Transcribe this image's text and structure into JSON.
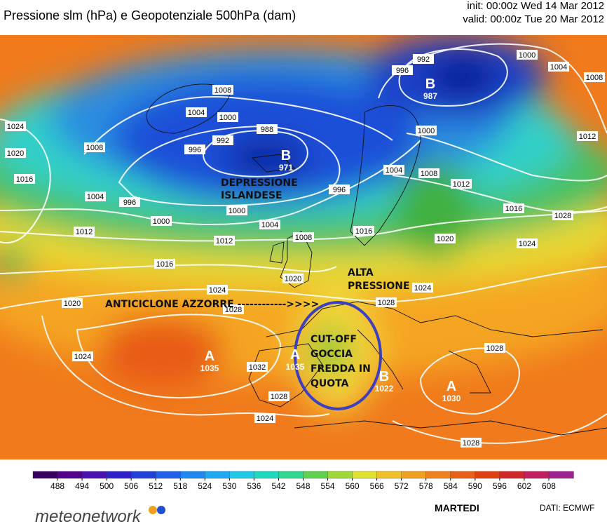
{
  "header": {
    "title": "Pressione slm (hPa) e Geopotenziale 500hPa (dam)",
    "init": "init: 00:00z Wed 14 Mar 2012",
    "valid": "valid: 00:00z Tue 20 Mar 2012"
  },
  "annotations": {
    "depression": [
      "DEPRESSIONE",
      "ISLANDESE"
    ],
    "high": [
      "ALTA",
      "PRESSIONE"
    ],
    "azores": "ANTICICLONE AZZORRE ------------>>>>",
    "cutoff": [
      "CUT-OFF",
      "GOCCIA",
      "FREDDA IN",
      "QUOTA"
    ]
  },
  "centers": [
    {
      "letter": "B",
      "value": 971
    },
    {
      "letter": "B",
      "value": 987
    },
    {
      "letter": "A",
      "value": 1035
    },
    {
      "letter": "A",
      "value": 1035
    },
    {
      "letter": "B",
      "value": 1022
    },
    {
      "letter": "A",
      "value": 1030
    }
  ],
  "isobar_labels": [
    1008,
    1004,
    1000,
    988,
    996,
    992,
    1008,
    1024,
    1020,
    1016,
    1004,
    996,
    1000,
    1000,
    1004,
    996,
    1012,
    1008,
    1016,
    1012,
    1024,
    1028,
    1020,
    1020,
    1024,
    1032,
    1028,
    1024,
    992,
    996,
    1000,
    1004,
    1008,
    1000,
    1004,
    1008,
    1012,
    1016,
    1012,
    1028,
    1016,
    1020,
    1024,
    1024,
    1028,
    1028,
    1028
  ],
  "colorbar": [
    488,
    494,
    500,
    506,
    512,
    518,
    524,
    530,
    536,
    542,
    548,
    554,
    560,
    566,
    572,
    578,
    584,
    590,
    596,
    602,
    608
  ],
  "footer": {
    "logo": "meteonetwork",
    "day": "MARTEDI",
    "source": "DATI: ECMWF"
  }
}
